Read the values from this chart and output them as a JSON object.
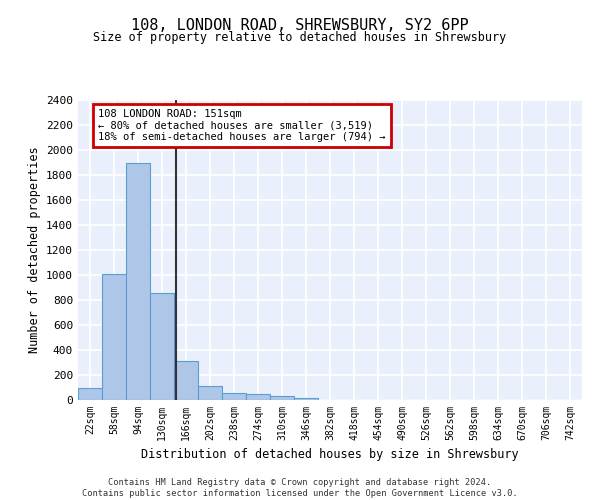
{
  "title1": "108, LONDON ROAD, SHREWSBURY, SY2 6PP",
  "title2": "Size of property relative to detached houses in Shrewsbury",
  "xlabel": "Distribution of detached houses by size in Shrewsbury",
  "ylabel": "Number of detached properties",
  "bin_labels": [
    "22sqm",
    "58sqm",
    "94sqm",
    "130sqm",
    "166sqm",
    "202sqm",
    "238sqm",
    "274sqm",
    "310sqm",
    "346sqm",
    "382sqm",
    "418sqm",
    "454sqm",
    "490sqm",
    "526sqm",
    "562sqm",
    "598sqm",
    "634sqm",
    "670sqm",
    "706sqm",
    "742sqm"
  ],
  "bar_values": [
    95,
    1010,
    1895,
    860,
    315,
    115,
    60,
    50,
    30,
    20,
    0,
    0,
    0,
    0,
    0,
    0,
    0,
    0,
    0,
    0,
    0
  ],
  "bar_color": "#aec6e8",
  "bar_edge_color": "#5a9fd4",
  "vline_color": "#333333",
  "annotation_line1": "108 LONDON ROAD: 151sqm",
  "annotation_line2": "← 80% of detached houses are smaller (3,519)",
  "annotation_line3": "18% of semi-detached houses are larger (794) →",
  "annotation_box_color": "#ffffff",
  "annotation_box_edge": "#cc0000",
  "bg_color": "#eaf0fb",
  "grid_color": "#ffffff",
  "ylim": [
    0,
    2400
  ],
  "yticks": [
    0,
    200,
    400,
    600,
    800,
    1000,
    1200,
    1400,
    1600,
    1800,
    2000,
    2200,
    2400
  ],
  "footer1": "Contains HM Land Registry data © Crown copyright and database right 2024.",
  "footer2": "Contains public sector information licensed under the Open Government Licence v3.0."
}
